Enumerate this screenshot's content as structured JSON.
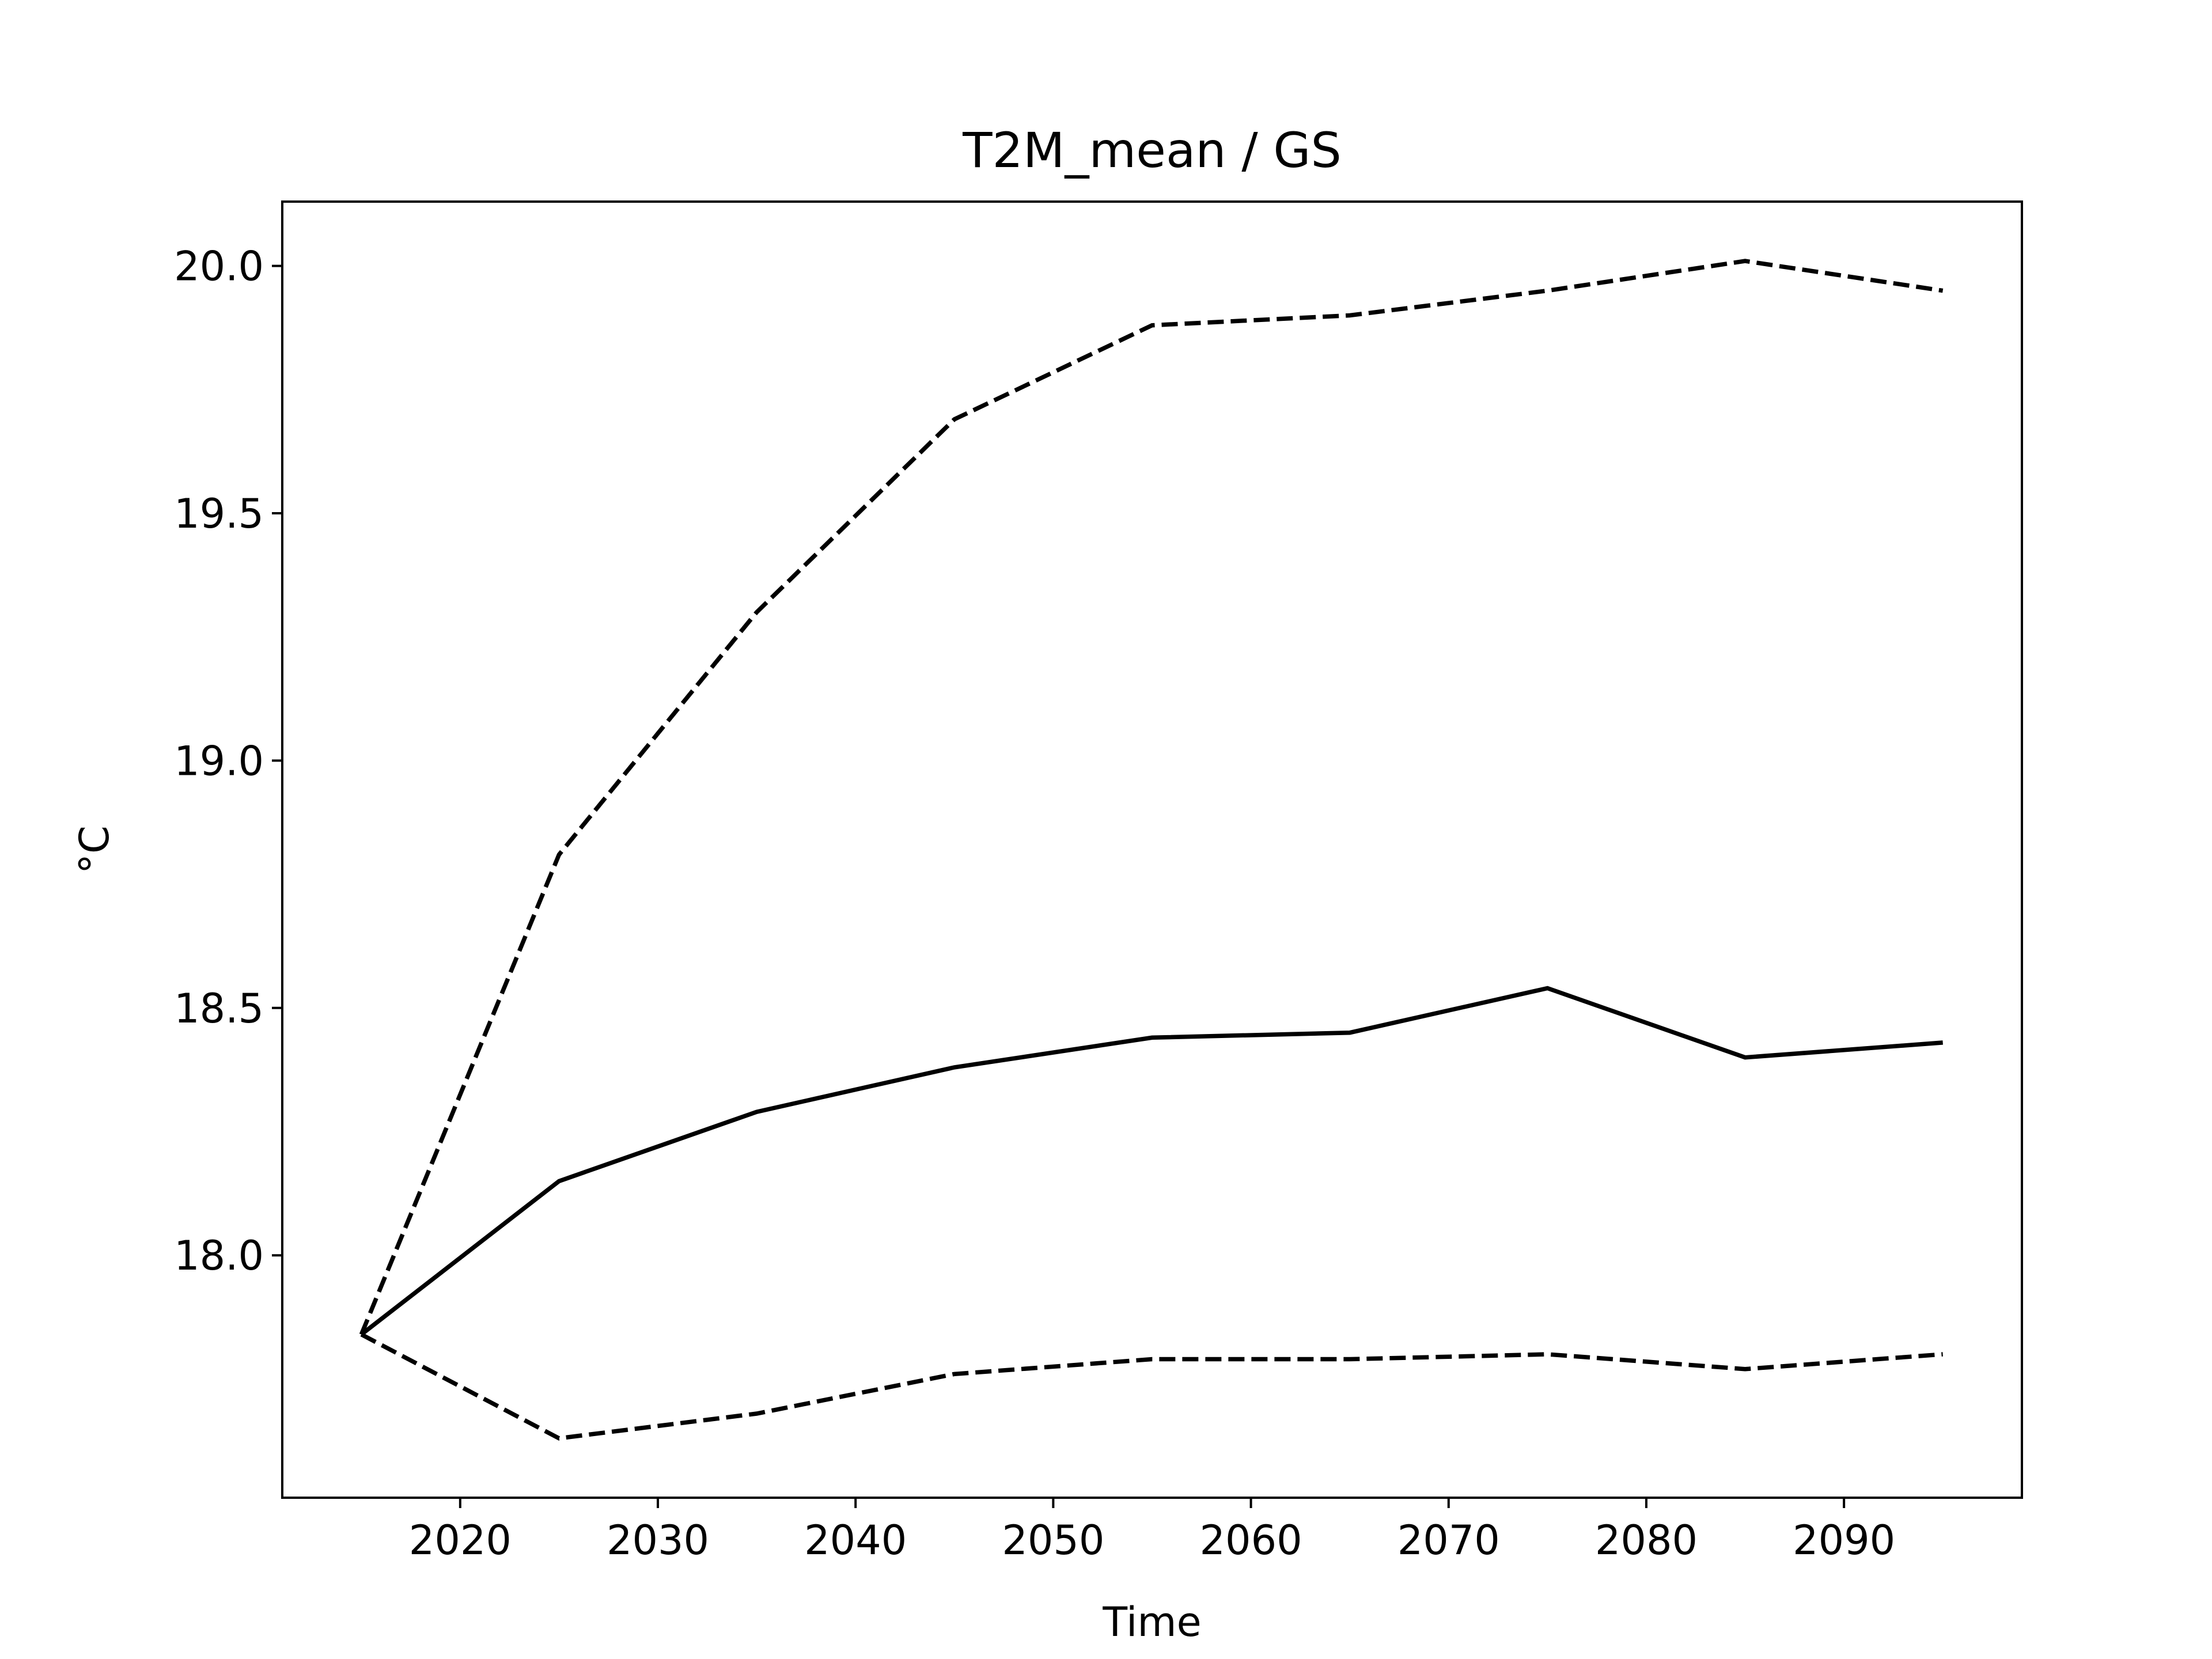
{
  "chart_data": {
    "type": "line",
    "title": "T2M_mean / GS",
    "xlabel": "Time",
    "ylabel": "°C",
    "x": [
      2015,
      2025,
      2035,
      2045,
      2055,
      2065,
      2075,
      2085,
      2095
    ],
    "series": [
      {
        "style": "solid",
        "color": "#000000",
        "values": [
          17.84,
          18.15,
          18.29,
          18.38,
          18.44,
          18.45,
          18.54,
          18.4,
          18.43
        ]
      },
      {
        "style": "dashed",
        "color": "#000000",
        "values": [
          17.84,
          18.81,
          19.3,
          19.69,
          19.88,
          19.9,
          19.95,
          20.01,
          19.95
        ]
      },
      {
        "style": "dashed",
        "color": "#000000",
        "values": [
          17.84,
          17.63,
          17.68,
          17.76,
          17.79,
          17.79,
          17.8,
          17.77,
          17.8
        ]
      }
    ],
    "xlim": [
      2011,
      2099
    ],
    "ylim": [
      17.51,
      20.13
    ],
    "xticks": [
      2020,
      2030,
      2040,
      2050,
      2060,
      2070,
      2080,
      2090
    ],
    "xtick_labels": [
      "2020",
      "2030",
      "2040",
      "2050",
      "2060",
      "2070",
      "2080",
      "2090"
    ],
    "yticks": [
      18.0,
      18.5,
      19.0,
      19.5,
      20.0
    ],
    "ytick_labels": [
      "18.0",
      "18.5",
      "19.0",
      "19.5",
      "20.0"
    ],
    "grid": false,
    "legend": "none"
  }
}
